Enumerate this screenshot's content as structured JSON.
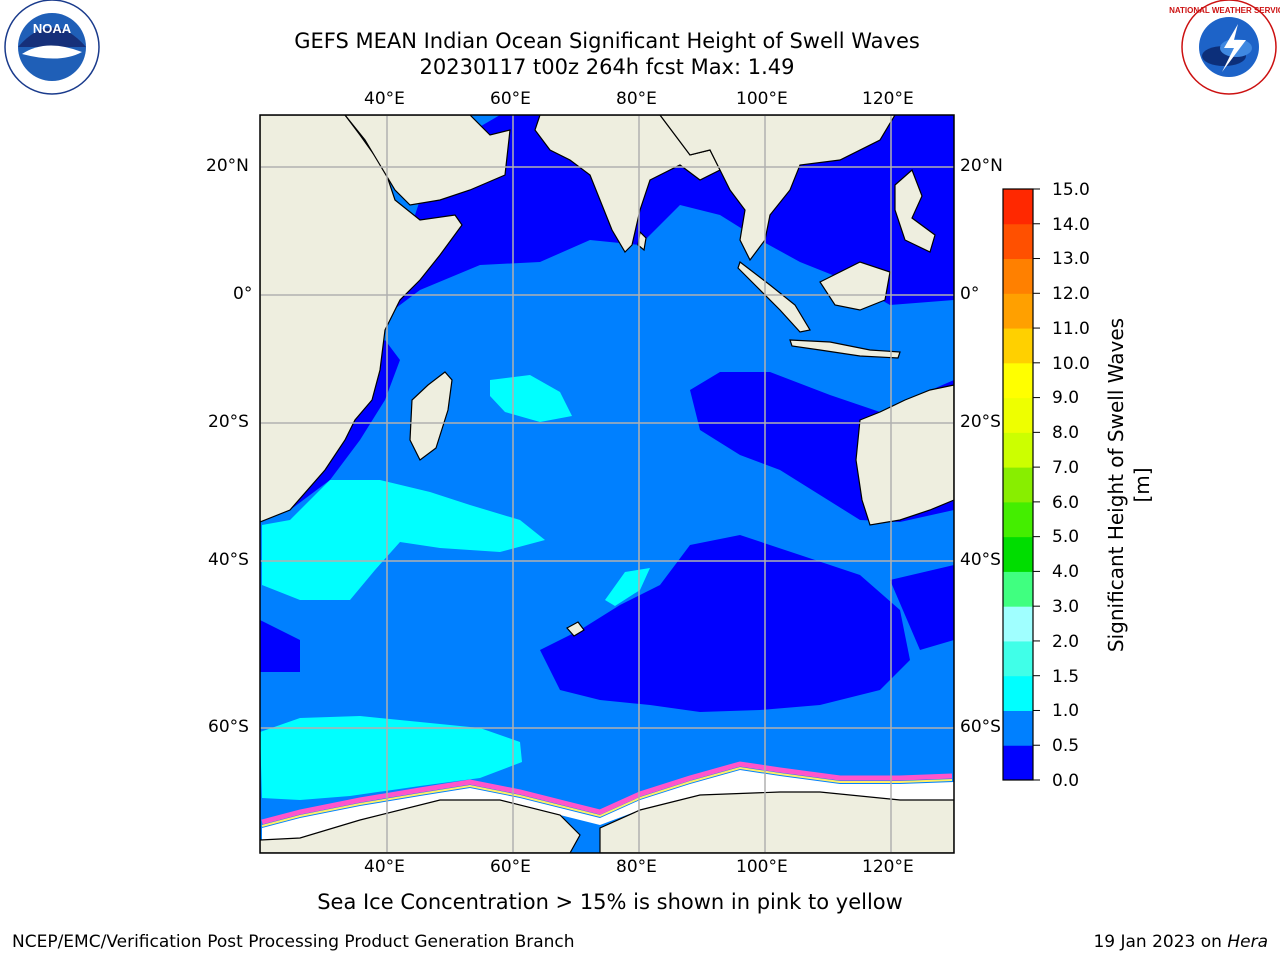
{
  "title_line1": "GEFS MEAN Indian Ocean Significant Height of Swell Waves",
  "title_line2": "20230117 t00z 264h fcst   Max: 1.49",
  "map_bottom_note": "Sea Ice Concentration > 15% is shown in pink to yellow",
  "footer": {
    "left": "NCEP/EMC/Verification Post Processing Product Generation Branch",
    "right_date": "19 Jan 2023 on ",
    "right_machine": "Hera"
  },
  "logos": {
    "left": "NOAA",
    "right": "NATIONAL WEATHER SERVICE"
  },
  "axes": {
    "lon_labels": [
      "40°E",
      "60°E",
      "80°E",
      "100°E",
      "120°E"
    ],
    "lat_labels": [
      "20°N",
      "0°",
      "20°S",
      "40°S",
      "60°S"
    ]
  },
  "colorbar": {
    "title": "Significant Height of Swell Waves [m]",
    "labels": [
      "15.0",
      "14.0",
      "13.0",
      "12.0",
      "11.0",
      "10.0",
      "9.0",
      "8.0",
      "7.0",
      "6.0",
      "5.0",
      "4.0",
      "3.0",
      "2.0",
      "1.5",
      "1.0",
      "0.5",
      "0.0"
    ],
    "colors": [
      "#0000ff",
      "#0080ff",
      "#00ffff",
      "#40ffe8",
      "#a0ffff",
      "#40ff80",
      "#00dd00",
      "#44ee00",
      "#88ee00",
      "#ccff00",
      "#eeff00",
      "#ffff00",
      "#ffd000",
      "#ffa000",
      "#ff8000",
      "#ff5000",
      "#ff2800",
      "#ff0000"
    ]
  },
  "colors": {
    "land": "#eeeedf",
    "deep_blue": "#0000ff",
    "mid_blue": "#0080ff",
    "cyan": "#00ffff",
    "ice_pink": "#ff55cc",
    "ice_yellow": "#ffee66"
  }
}
